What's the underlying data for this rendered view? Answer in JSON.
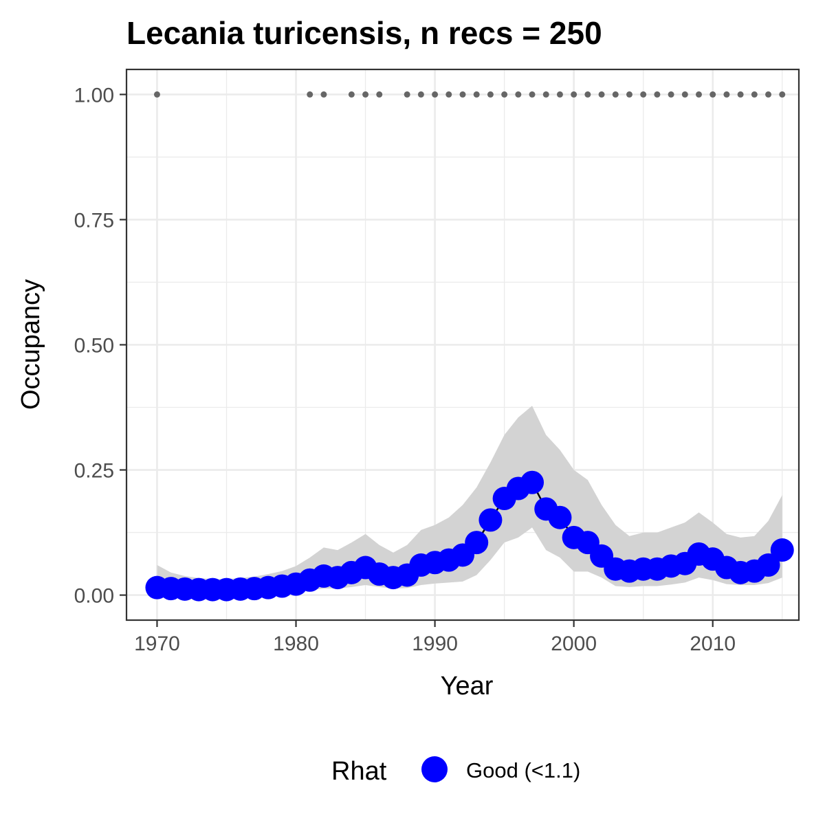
{
  "chart_data": {
    "type": "line",
    "title": "Lecania turicensis, n recs = 250",
    "xlabel": "Year",
    "ylabel": "Occupancy",
    "xlim": [
      1967.8,
      1941.2
    ],
    "x_range": [
      1967.8,
      2016.2
    ],
    "ylim": [
      -0.05,
      1.05
    ],
    "x_ticks": [
      1970,
      1980,
      1990,
      2000,
      2010
    ],
    "x_tick_labels": [
      "1970",
      "1980",
      "1990",
      "2000",
      "2010"
    ],
    "y_ticks": [
      0,
      0.25,
      0.5,
      0.75,
      1.0
    ],
    "y_tick_labels": [
      "0.00",
      "0.25",
      "0.50",
      "0.75",
      "1.00"
    ],
    "grid": true,
    "legend": {
      "title": "Rhat",
      "position": "bottom",
      "entries": [
        {
          "label": "Good (<1.1)",
          "color": "#0000ff"
        }
      ]
    },
    "series": [
      {
        "name": "Good (<1.1)",
        "color": "#0000ff",
        "x": [
          1970,
          1971,
          1972,
          1973,
          1974,
          1975,
          1976,
          1977,
          1978,
          1979,
          1980,
          1981,
          1982,
          1983,
          1984,
          1985,
          1986,
          1987,
          1988,
          1989,
          1990,
          1991,
          1992,
          1993,
          1994,
          1995,
          1996,
          1997,
          1998,
          1999,
          2000,
          2001,
          2002,
          2003,
          2004,
          2005,
          2006,
          2007,
          2008,
          2009,
          2010,
          2011,
          2012,
          2013,
          2014,
          2015
        ],
        "y": [
          0.015,
          0.013,
          0.012,
          0.011,
          0.011,
          0.011,
          0.012,
          0.013,
          0.015,
          0.018,
          0.022,
          0.03,
          0.038,
          0.035,
          0.045,
          0.055,
          0.042,
          0.035,
          0.04,
          0.06,
          0.065,
          0.07,
          0.08,
          0.105,
          0.15,
          0.193,
          0.213,
          0.225,
          0.172,
          0.155,
          0.115,
          0.105,
          0.078,
          0.052,
          0.048,
          0.052,
          0.052,
          0.058,
          0.063,
          0.082,
          0.072,
          0.055,
          0.045,
          0.048,
          0.06,
          0.09
        ]
      }
    ],
    "ribbon": {
      "color": "#d3d3d3",
      "lower": [
        0.003,
        0.003,
        0.002,
        0.002,
        0.002,
        0.002,
        0.002,
        0.003,
        0.004,
        0.005,
        0.007,
        0.01,
        0.013,
        0.013,
        0.016,
        0.02,
        0.016,
        0.013,
        0.014,
        0.02,
        0.023,
        0.025,
        0.027,
        0.04,
        0.07,
        0.105,
        0.115,
        0.135,
        0.09,
        0.075,
        0.047,
        0.047,
        0.035,
        0.018,
        0.016,
        0.018,
        0.018,
        0.021,
        0.025,
        0.035,
        0.03,
        0.022,
        0.02,
        0.02,
        0.024,
        0.035
      ],
      "upper": [
        0.06,
        0.045,
        0.038,
        0.034,
        0.032,
        0.032,
        0.034,
        0.037,
        0.042,
        0.048,
        0.058,
        0.075,
        0.095,
        0.09,
        0.105,
        0.122,
        0.1,
        0.085,
        0.1,
        0.13,
        0.14,
        0.155,
        0.18,
        0.215,
        0.265,
        0.32,
        0.355,
        0.378,
        0.32,
        0.29,
        0.25,
        0.23,
        0.18,
        0.14,
        0.118,
        0.125,
        0.125,
        0.135,
        0.145,
        0.165,
        0.145,
        0.122,
        0.115,
        0.118,
        0.148,
        0.2
      ]
    },
    "detections": {
      "color": "#666666",
      "y": 1.0,
      "x": [
        1970,
        1981,
        1982,
        1984,
        1985,
        1986,
        1988,
        1989,
        1990,
        1991,
        1992,
        1993,
        1994,
        1995,
        1996,
        1997,
        1998,
        1999,
        2000,
        2001,
        2002,
        2003,
        2004,
        2005,
        2006,
        2007,
        2008,
        2009,
        2010,
        2011,
        2012,
        2013,
        2014,
        2015
      ]
    }
  }
}
